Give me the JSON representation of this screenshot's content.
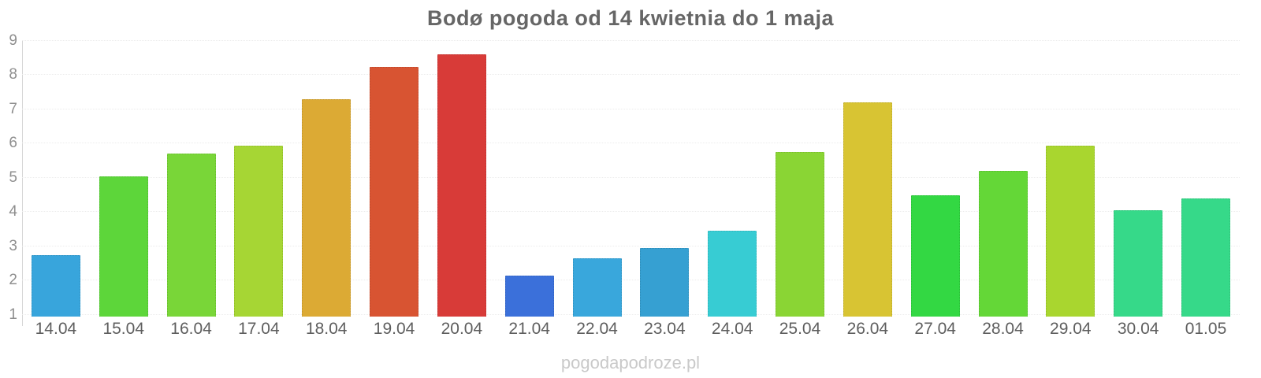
{
  "title": "Bodø pogoda od 14 kwietnia do 1 maja",
  "watermark": "pogodapodroze.pl",
  "chart_data": {
    "type": "bar",
    "title": "Bodø pogoda od 14 kwietnia do 1 maja",
    "categories": [
      "14.04",
      "15.04",
      "16.04",
      "17.04",
      "18.04",
      "19.04",
      "20.04",
      "21.04",
      "22.04",
      "23.04",
      "24.04",
      "25.04",
      "26.04",
      "27.04",
      "28.04",
      "29.04",
      "30.04",
      "01.05"
    ],
    "values": [
      2.75,
      5.05,
      5.7,
      5.95,
      7.3,
      8.25,
      8.6,
      2.15,
      2.65,
      2.95,
      3.45,
      5.75,
      7.2,
      4.5,
      5.2,
      5.95,
      4.05,
      4.4
    ],
    "bar_colors": [
      "#38a5dc",
      "#5dd63a",
      "#79d638",
      "#a6d634",
      "#dcaa34",
      "#d85432",
      "#d83b38",
      "#3b70da",
      "#39a7dc",
      "#36a0d2",
      "#37ccd3",
      "#8ad534",
      "#d8c433",
      "#33d843",
      "#64d737",
      "#a9d62f",
      "#36d989",
      "#36d989"
    ],
    "xlabel": "",
    "ylabel": "",
    "ylim": [
      0.95,
      9
    ],
    "yticks": [
      1,
      2,
      3,
      4,
      5,
      6,
      7,
      8,
      9
    ],
    "grid": "horizontal-dotted",
    "legend": "none"
  },
  "colors": {
    "title": "#666666",
    "y_tick_label": "#8e8e8e",
    "x_tick_label": "#5e5e5e",
    "gridline": "#ececec",
    "axis_line": "#d6d6d6",
    "watermark": "#c9c9c9",
    "background": "#ffffff"
  }
}
